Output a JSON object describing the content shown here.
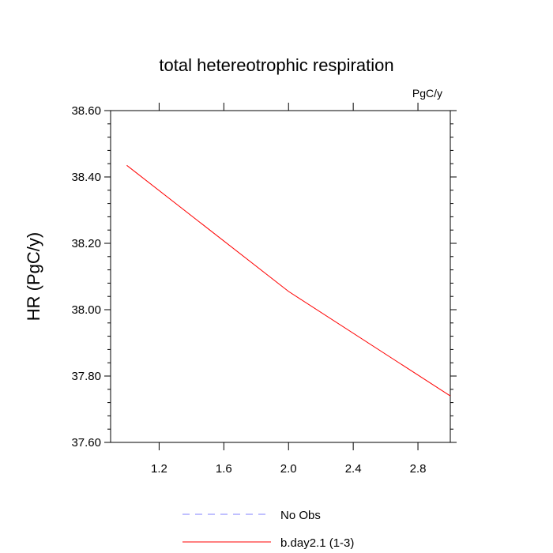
{
  "chart_data": {
    "type": "line",
    "title": "total hetereotrophic respiration",
    "units_label": "PgC/y",
    "ylabel": "HR  (PgC/y)",
    "xlabel": "",
    "xlim": [
      0.9,
      3.0
    ],
    "ylim": [
      37.6,
      38.6
    ],
    "xticks": [
      1.2,
      1.6,
      2.0,
      2.4,
      2.8
    ],
    "xtick_labels": [
      "1.2",
      "1.6",
      "2.0",
      "2.4",
      "2.8"
    ],
    "yticks": [
      37.6,
      37.8,
      38.0,
      38.2,
      38.4,
      38.6
    ],
    "ytick_labels": [
      "37.60",
      "37.80",
      "38.00",
      "38.20",
      "38.40",
      "38.60"
    ],
    "grid": false,
    "legend_position": "bottom-center",
    "series": [
      {
        "name": "No Obs",
        "color": "#8080ff",
        "dash": "dashed",
        "x": [],
        "y": []
      },
      {
        "name": "b.day2.1 (1-3)",
        "color": "#ff0000",
        "dash": "solid",
        "x": [
          1.0,
          2.0,
          3.0
        ],
        "y": [
          38.435,
          38.055,
          37.74
        ]
      }
    ]
  }
}
